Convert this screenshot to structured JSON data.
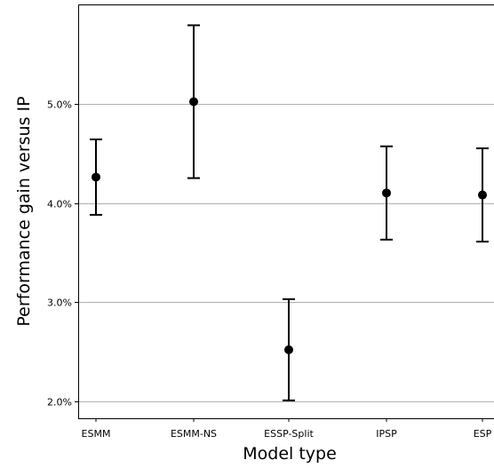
{
  "chart_data": {
    "type": "scatter",
    "title": "",
    "xlabel": "Model type",
    "ylabel": "Performance gain versus IP",
    "categories": [
      "ESMM",
      "ESMM-NS",
      "ESSP-Split",
      "IPSP",
      "ESP"
    ],
    "values": [
      4.26,
      5.02,
      2.52,
      4.1,
      4.08
    ],
    "err_low": [
      3.88,
      4.25,
      2.01,
      3.63,
      3.61
    ],
    "err_high": [
      4.64,
      5.79,
      3.03,
      4.57,
      4.55
    ],
    "ylim": [
      1.83,
      6.0
    ],
    "yticks": [
      2.0,
      3.0,
      4.0,
      5.0
    ],
    "ytick_labels": [
      "2.0%",
      "3.0%",
      "4.0%",
      "5.0%"
    ],
    "grid": "y",
    "colors": {
      "marker": "#000000",
      "grid": "#b0b0b0"
    }
  }
}
